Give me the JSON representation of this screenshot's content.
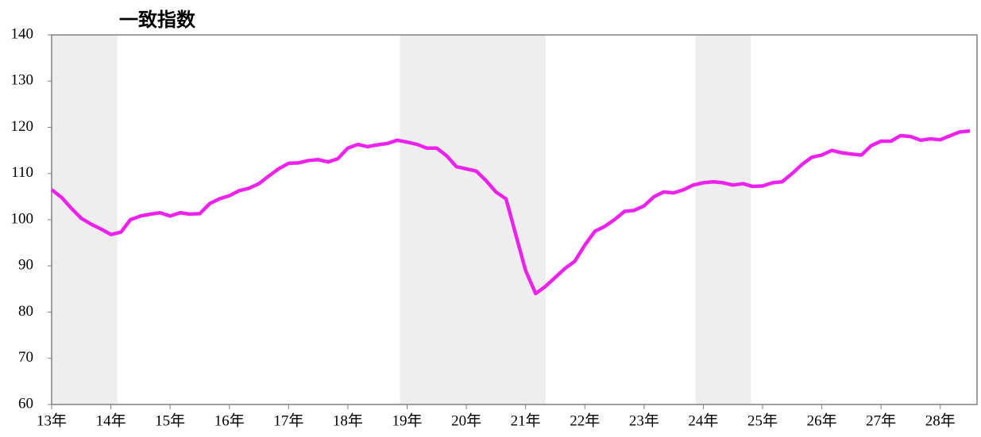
{
  "chart_data": {
    "type": "line",
    "title": "一致指数",
    "x": [
      13,
      13.17,
      13.33,
      13.5,
      13.67,
      13.83,
      14,
      14.17,
      14.33,
      14.5,
      14.67,
      14.83,
      15,
      15.17,
      15.33,
      15.5,
      15.67,
      15.83,
      16,
      16.17,
      16.33,
      16.5,
      16.67,
      16.83,
      17,
      17.17,
      17.33,
      17.5,
      17.67,
      17.83,
      18,
      18.17,
      18.33,
      18.5,
      18.67,
      18.83,
      19,
      19.17,
      19.33,
      19.5,
      19.67,
      19.83,
      20,
      20.17,
      20.33,
      20.5,
      20.67,
      20.83,
      21,
      21.17,
      21.33,
      21.5,
      21.67,
      21.83,
      22,
      22.17,
      22.33,
      22.5,
      22.67,
      22.83,
      23,
      23.17,
      23.33,
      23.5,
      23.67,
      23.83,
      24,
      24.17,
      24.33,
      24.5,
      24.67,
      24.83,
      25,
      25.17,
      25.33,
      25.5,
      25.67,
      25.83,
      26,
      26.17,
      26.33,
      26.5,
      26.67,
      26.83,
      27,
      27.17,
      27.33,
      27.5,
      27.67,
      27.83,
      28,
      28.17,
      28.33,
      28.5
    ],
    "series": [
      {
        "color": "#ee22ee",
        "values": [
          106.5,
          104.8,
          102.5,
          100.3,
          99,
          98,
          96.8,
          97.3,
          100,
          100.8,
          101.2,
          101.5,
          100.8,
          101.5,
          101.2,
          101.3,
          103.5,
          104.5,
          105.2,
          106.3,
          106.8,
          107.8,
          109.5,
          111,
          112.2,
          112.3,
          112.8,
          113,
          112.5,
          113.2,
          115.5,
          116.3,
          115.8,
          116.2,
          116.5,
          117.2,
          116.8,
          116.3,
          115.5,
          115.5,
          113.8,
          111.5,
          111,
          110.5,
          108.5,
          106,
          104.5,
          97,
          89,
          84,
          85.5,
          87.5,
          89.5,
          91,
          94.5,
          97.5,
          98.5,
          100,
          101.8,
          102,
          103,
          105,
          106,
          105.8,
          106.5,
          107.5,
          108,
          108.2,
          108,
          107.5,
          107.8,
          107.2,
          107.3,
          108,
          108.2,
          110,
          112,
          113.5,
          114,
          115,
          114.5,
          114.2,
          114,
          116,
          117,
          117,
          118.2,
          118,
          117.2,
          117.5,
          117.3,
          118.2,
          119,
          119.2
        ]
      }
    ],
    "shaded": [
      [
        13,
        14.11
      ],
      [
        18.88,
        21.34
      ],
      [
        23.87,
        24.8
      ]
    ],
    "xlim": [
      13,
      28.62
    ],
    "xticks": [
      {
        "value": 13,
        "label": "13年"
      },
      {
        "value": 14,
        "label": "14年"
      },
      {
        "value": 15,
        "label": "15年"
      },
      {
        "value": 16,
        "label": "16年"
      },
      {
        "value": 17,
        "label": "17年"
      },
      {
        "value": 18,
        "label": "18年"
      },
      {
        "value": 19,
        "label": "19年"
      },
      {
        "value": 20,
        "label": "20年"
      },
      {
        "value": 21,
        "label": "21年"
      },
      {
        "value": 22,
        "label": "22年"
      },
      {
        "value": 23,
        "label": "23年"
      },
      {
        "value": 24,
        "label": "24年"
      },
      {
        "value": 25,
        "label": "25年"
      },
      {
        "value": 26,
        "label": "26年"
      },
      {
        "value": 27,
        "label": "27年"
      },
      {
        "value": 28,
        "label": "28年"
      }
    ],
    "ylim": [
      60,
      140
    ],
    "yticks": [
      60,
      70,
      80,
      90,
      100,
      110,
      120,
      130,
      140
    ]
  }
}
